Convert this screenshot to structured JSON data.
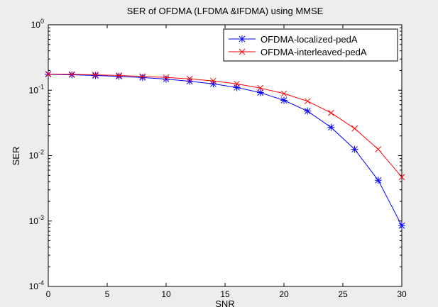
{
  "chart_data": {
    "type": "line",
    "title": "SER of  OFDMA (LFDMA &IFDMA) using MMSE",
    "xlabel": "SNR",
    "ylabel": "SER",
    "xlim": [
      0,
      30
    ],
    "ylim": [
      0.0001,
      1
    ],
    "yscale": "log",
    "x_ticks": [
      "0",
      "5",
      "10",
      "15",
      "20",
      "25",
      "30"
    ],
    "y_tick_exponents": [
      "0",
      "-1",
      "-2",
      "-3",
      "-4"
    ],
    "y_tick_base": "10",
    "grid": false,
    "legend_position": "top-right",
    "x": [
      0,
      2,
      4,
      6,
      8,
      10,
      12,
      14,
      16,
      18,
      20,
      22,
      24,
      26,
      28,
      30
    ],
    "series": [
      {
        "name": "OFDMA-localized-pedA",
        "color": "#0000ff",
        "marker": "asterisk",
        "values": [
          0.175,
          0.172,
          0.168,
          0.163,
          0.156,
          0.148,
          0.137,
          0.125,
          0.11,
          0.092,
          0.07,
          0.048,
          0.027,
          0.0125,
          0.0042,
          0.00085
        ]
      },
      {
        "name": "OFDMA-interleaved-pedA",
        "color": "#ff0000",
        "marker": "x",
        "values": [
          0.177,
          0.175,
          0.172,
          0.168,
          0.163,
          0.157,
          0.149,
          0.139,
          0.125,
          0.108,
          0.089,
          0.068,
          0.045,
          0.026,
          0.0125,
          0.0047
        ]
      }
    ]
  }
}
